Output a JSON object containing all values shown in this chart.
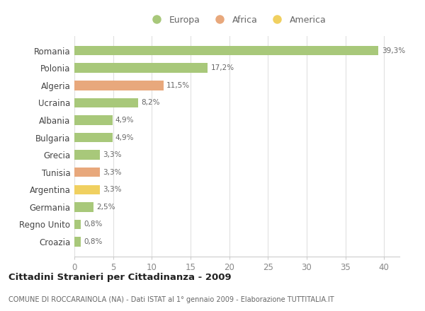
{
  "countries": [
    "Romania",
    "Polonia",
    "Algeria",
    "Ucraina",
    "Albania",
    "Bulgaria",
    "Grecia",
    "Tunisia",
    "Argentina",
    "Germania",
    "Regno Unito",
    "Croazia"
  ],
  "values": [
    39.3,
    17.2,
    11.5,
    8.2,
    4.9,
    4.9,
    3.3,
    3.3,
    3.3,
    2.5,
    0.8,
    0.8
  ],
  "labels": [
    "39,3%",
    "17,2%",
    "11,5%",
    "8,2%",
    "4,9%",
    "4,9%",
    "3,3%",
    "3,3%",
    "3,3%",
    "2,5%",
    "0,8%",
    "0,8%"
  ],
  "continents": [
    "Europa",
    "Europa",
    "Africa",
    "Europa",
    "Europa",
    "Europa",
    "Europa",
    "Africa",
    "America",
    "Europa",
    "Europa",
    "Europa"
  ],
  "colors": {
    "Europa": "#a8c87a",
    "Africa": "#e8a87c",
    "America": "#f0d060"
  },
  "xlim": [
    0,
    42
  ],
  "xticks": [
    0,
    5,
    10,
    15,
    20,
    25,
    30,
    35,
    40
  ],
  "title": "Cittadini Stranieri per Cittadinanza - 2009",
  "subtitle": "COMUNE DI ROCCARAINOLA (NA) - Dati ISTAT al 1° gennaio 2009 - Elaborazione TUTTITALIA.IT",
  "background_color": "#ffffff",
  "grid_color": "#e0e0e0",
  "legend_labels": [
    "Europa",
    "Africa",
    "America"
  ],
  "legend_colors": [
    "#a8c87a",
    "#e8a87c",
    "#f0d060"
  ]
}
